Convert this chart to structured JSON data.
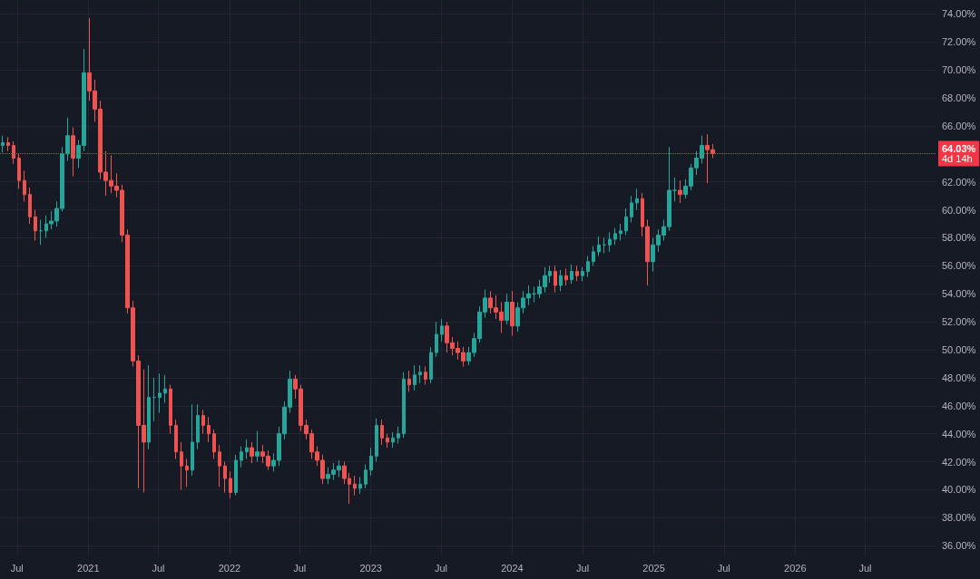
{
  "chart_data": {
    "type": "candlestick",
    "x": [
      "2020-05-25",
      "2020-06-08",
      "2020-06-22",
      "2020-07-06",
      "2020-07-20",
      "2020-08-03",
      "2020-08-17",
      "2020-08-31",
      "2020-09-14",
      "2020-09-28",
      "2020-10-12",
      "2020-10-26",
      "2020-11-09",
      "2020-11-23",
      "2020-12-07",
      "2020-12-21",
      "2021-01-04",
      "2021-01-18",
      "2021-02-01",
      "2021-02-15",
      "2021-03-01",
      "2021-03-15",
      "2021-03-29",
      "2021-04-12",
      "2021-04-26",
      "2021-05-10",
      "2021-05-24",
      "2021-06-07",
      "2021-06-21",
      "2021-07-05",
      "2021-07-19",
      "2021-08-02",
      "2021-08-16",
      "2021-08-30",
      "2021-09-13",
      "2021-09-27",
      "2021-10-11",
      "2021-10-25",
      "2021-11-08",
      "2021-11-22",
      "2021-12-06",
      "2021-12-20",
      "2022-01-03",
      "2022-01-17",
      "2022-01-31",
      "2022-02-14",
      "2022-02-28",
      "2022-03-14",
      "2022-03-28",
      "2022-04-11",
      "2022-04-25",
      "2022-05-09",
      "2022-05-23",
      "2022-06-06",
      "2022-06-20",
      "2022-07-04",
      "2022-07-18",
      "2022-08-01",
      "2022-08-15",
      "2022-08-29",
      "2022-09-12",
      "2022-09-26",
      "2022-10-10",
      "2022-10-24",
      "2022-11-07",
      "2022-11-21",
      "2022-12-05",
      "2022-12-19",
      "2023-01-02",
      "2023-01-16",
      "2023-01-30",
      "2023-02-13",
      "2023-02-27",
      "2023-03-13",
      "2023-03-27",
      "2023-04-10",
      "2023-04-24",
      "2023-05-08",
      "2023-05-22",
      "2023-06-05",
      "2023-06-19",
      "2023-07-03",
      "2023-07-17",
      "2023-07-31",
      "2023-08-14",
      "2023-08-28",
      "2023-09-11",
      "2023-09-25",
      "2023-10-09",
      "2023-10-23",
      "2023-11-06",
      "2023-11-20",
      "2023-12-04",
      "2023-12-18",
      "2024-01-01",
      "2024-01-15",
      "2024-01-29",
      "2024-02-12",
      "2024-02-26",
      "2024-03-11",
      "2024-03-25",
      "2024-04-08",
      "2024-04-22",
      "2024-05-06",
      "2024-05-20",
      "2024-06-03",
      "2024-06-17",
      "2024-07-01",
      "2024-07-15",
      "2024-07-29",
      "2024-08-12",
      "2024-08-26",
      "2024-09-09",
      "2024-09-23",
      "2024-10-07",
      "2024-10-21",
      "2024-11-04",
      "2024-11-18",
      "2024-12-02",
      "2024-12-16",
      "2024-12-30",
      "2025-01-13",
      "2025-01-27",
      "2025-02-10",
      "2025-02-24",
      "2025-03-10",
      "2025-03-24",
      "2025-04-07",
      "2025-04-21",
      "2025-05-05",
      "2025-05-19",
      "2025-06-02"
    ],
    "ohlc": [
      [
        64.6,
        65.3,
        64.1,
        64.8
      ],
      [
        64.8,
        65.2,
        64.2,
        64.6
      ],
      [
        64.6,
        64.9,
        63.3,
        63.7
      ],
      [
        63.7,
        64.0,
        61.5,
        62.1
      ],
      [
        62.1,
        62.8,
        60.6,
        61.1
      ],
      [
        61.1,
        61.6,
        59.0,
        59.5
      ],
      [
        59.5,
        60.0,
        57.8,
        58.5
      ],
      [
        58.5,
        59.3,
        57.5,
        58.5
      ],
      [
        58.5,
        59.6,
        58.0,
        59.0
      ],
      [
        59.0,
        59.9,
        58.6,
        59.2
      ],
      [
        59.2,
        60.6,
        58.8,
        60.1
      ],
      [
        60.1,
        64.5,
        59.9,
        64.0
      ],
      [
        64.0,
        66.6,
        63.5,
        65.3
      ],
      [
        65.3,
        65.9,
        62.4,
        63.7
      ],
      [
        63.7,
        65.0,
        63.0,
        64.6
      ],
      [
        64.6,
        71.5,
        64.2,
        69.8
      ],
      [
        69.8,
        73.7,
        67.8,
        68.5
      ],
      [
        68.5,
        69.3,
        66.3,
        67.2
      ],
      [
        67.2,
        67.8,
        62.2,
        62.7
      ],
      [
        62.7,
        64.2,
        61.0,
        62.1
      ],
      [
        62.1,
        63.9,
        61.2,
        61.7
      ],
      [
        61.7,
        62.6,
        60.9,
        61.4
      ],
      [
        61.4,
        61.8,
        57.7,
        58.2
      ],
      [
        58.2,
        58.6,
        52.6,
        53.0
      ],
      [
        53.0,
        53.5,
        48.8,
        49.2
      ],
      [
        49.2,
        49.6,
        40.1,
        44.6
      ],
      [
        44.6,
        48.6,
        39.8,
        43.4
      ],
      [
        43.4,
        48.9,
        42.9,
        46.6
      ],
      [
        46.6,
        48.0,
        44.9,
        46.6
      ],
      [
        46.6,
        48.3,
        45.5,
        46.9
      ],
      [
        46.9,
        48.2,
        46.2,
        47.2
      ],
      [
        47.2,
        47.5,
        44.0,
        44.6
      ],
      [
        44.6,
        45.0,
        42.2,
        42.7
      ],
      [
        42.7,
        43.4,
        40.0,
        41.7
      ],
      [
        41.7,
        42.2,
        40.2,
        41.4
      ],
      [
        41.4,
        46.1,
        41.0,
        43.4
      ],
      [
        43.4,
        46.1,
        42.9,
        45.3
      ],
      [
        45.3,
        45.7,
        44.0,
        44.6
      ],
      [
        44.6,
        45.2,
        43.4,
        44.0
      ],
      [
        44.0,
        44.3,
        42.2,
        42.7
      ],
      [
        42.7,
        43.2,
        40.2,
        41.7
      ],
      [
        41.7,
        42.0,
        39.8,
        40.8
      ],
      [
        40.8,
        41.3,
        39.4,
        39.8
      ],
      [
        39.8,
        42.5,
        39.6,
        42.1
      ],
      [
        42.1,
        43.1,
        41.6,
        42.7
      ],
      [
        42.7,
        43.6,
        42.2,
        43.0
      ],
      [
        43.0,
        43.4,
        41.9,
        42.4
      ],
      [
        42.4,
        44.2,
        42.0,
        42.7
      ],
      [
        42.7,
        43.2,
        41.9,
        42.4
      ],
      [
        42.4,
        42.8,
        41.4,
        41.7
      ],
      [
        41.7,
        42.6,
        41.3,
        42.1
      ],
      [
        42.1,
        44.5,
        41.7,
        44.0
      ],
      [
        44.0,
        46.3,
        43.6,
        45.9
      ],
      [
        45.9,
        48.5,
        45.5,
        47.9
      ],
      [
        47.9,
        48.2,
        46.5,
        47.2
      ],
      [
        47.2,
        47.5,
        44.2,
        44.6
      ],
      [
        44.6,
        45.0,
        43.6,
        44.0
      ],
      [
        44.0,
        44.3,
        42.2,
        42.7
      ],
      [
        42.7,
        43.1,
        41.7,
        42.1
      ],
      [
        42.1,
        42.5,
        40.4,
        40.8
      ],
      [
        40.8,
        41.6,
        40.4,
        41.1
      ],
      [
        41.1,
        41.9,
        40.7,
        41.4
      ],
      [
        41.4,
        42.1,
        40.9,
        41.7
      ],
      [
        41.7,
        42.0,
        40.4,
        40.8
      ],
      [
        40.8,
        41.2,
        39.0,
        40.4
      ],
      [
        40.4,
        41.0,
        39.6,
        40.1
      ],
      [
        40.1,
        40.9,
        39.7,
        40.4
      ],
      [
        40.4,
        41.8,
        40.1,
        41.4
      ],
      [
        41.4,
        43.0,
        41.0,
        42.4
      ],
      [
        42.4,
        45.1,
        42.0,
        44.6
      ],
      [
        44.6,
        45.0,
        43.2,
        43.7
      ],
      [
        43.7,
        44.0,
        43.0,
        43.4
      ],
      [
        43.4,
        44.1,
        43.0,
        43.7
      ],
      [
        43.7,
        44.5,
        43.3,
        44.0
      ],
      [
        44.0,
        48.4,
        43.7,
        47.9
      ],
      [
        47.9,
        48.5,
        47.0,
        47.5
      ],
      [
        47.5,
        48.9,
        47.1,
        48.2
      ],
      [
        48.2,
        48.9,
        47.6,
        48.4
      ],
      [
        48.4,
        48.8,
        47.5,
        47.9
      ],
      [
        47.9,
        50.2,
        47.6,
        49.8
      ],
      [
        49.8,
        52.0,
        49.5,
        51.1
      ],
      [
        51.1,
        52.2,
        50.6,
        51.7
      ],
      [
        51.7,
        52.0,
        49.8,
        50.5
      ],
      [
        50.5,
        50.9,
        49.6,
        50.1
      ],
      [
        50.1,
        50.6,
        49.3,
        49.8
      ],
      [
        49.8,
        50.2,
        48.8,
        49.2
      ],
      [
        49.2,
        50.2,
        48.9,
        49.8
      ],
      [
        49.8,
        51.2,
        49.5,
        50.8
      ],
      [
        50.8,
        53.1,
        50.5,
        52.7
      ],
      [
        52.7,
        54.3,
        52.3,
        53.7
      ],
      [
        53.7,
        54.2,
        52.6,
        53.0
      ],
      [
        53.0,
        53.9,
        52.2,
        52.7
      ],
      [
        52.7,
        53.4,
        51.2,
        52.1
      ],
      [
        52.1,
        54.0,
        51.8,
        53.4
      ],
      [
        53.4,
        54.2,
        51.0,
        51.7
      ],
      [
        51.7,
        53.4,
        51.3,
        53.0
      ],
      [
        53.0,
        54.2,
        52.6,
        53.7
      ],
      [
        53.7,
        54.6,
        53.2,
        54.0
      ],
      [
        54.0,
        54.5,
        53.4,
        54.0
      ],
      [
        54.0,
        55.0,
        53.7,
        54.5
      ],
      [
        54.5,
        55.9,
        54.1,
        55.3
      ],
      [
        55.3,
        56.0,
        54.8,
        55.6
      ],
      [
        55.6,
        56.0,
        54.1,
        54.6
      ],
      [
        54.6,
        55.7,
        54.2,
        55.3
      ],
      [
        55.3,
        55.8,
        54.6,
        55.0
      ],
      [
        55.0,
        56.1,
        54.7,
        55.6
      ],
      [
        55.6,
        56.0,
        54.9,
        55.3
      ],
      [
        55.3,
        55.9,
        54.9,
        55.6
      ],
      [
        55.6,
        56.7,
        55.2,
        56.3
      ],
      [
        56.3,
        57.4,
        56.0,
        57.0
      ],
      [
        57.0,
        58.1,
        56.7,
        57.5
      ],
      [
        57.5,
        58.0,
        56.9,
        57.5
      ],
      [
        57.5,
        58.4,
        57.0,
        57.9
      ],
      [
        57.9,
        58.7,
        57.5,
        58.3
      ],
      [
        58.3,
        59.0,
        57.8,
        58.5
      ],
      [
        58.5,
        60.1,
        58.2,
        59.5
      ],
      [
        59.5,
        61.0,
        59.1,
        60.5
      ],
      [
        60.5,
        61.5,
        60.0,
        60.8
      ],
      [
        60.8,
        61.2,
        58.1,
        58.8
      ],
      [
        58.8,
        59.3,
        54.6,
        56.3
      ],
      [
        56.3,
        58.0,
        55.6,
        57.5
      ],
      [
        57.5,
        58.6,
        57.0,
        58.2
      ],
      [
        58.2,
        59.3,
        57.8,
        58.8
      ],
      [
        58.8,
        64.5,
        58.5,
        61.4
      ],
      [
        61.4,
        62.3,
        60.6,
        61.4
      ],
      [
        61.4,
        62.1,
        60.5,
        61.1
      ],
      [
        61.1,
        62.2,
        60.8,
        61.7
      ],
      [
        61.7,
        63.3,
        61.4,
        63.0
      ],
      [
        63.0,
        64.2,
        62.5,
        63.7
      ],
      [
        63.7,
        65.3,
        63.3,
        64.6
      ],
      [
        64.6,
        65.4,
        61.9,
        64.3
      ],
      [
        64.3,
        64.7,
        63.7,
        64.03
      ]
    ],
    "colors": [
      "#26a69a",
      "#ef5350",
      "#ef5350",
      "#ef5350",
      "#ef5350",
      "#ef5350",
      "#ef5350",
      "#26a69a",
      "#26a69a",
      "#26a69a",
      "#26a69a",
      "#26a69a",
      "#26a69a",
      "#ef5350",
      "#26a69a",
      "#26a69a",
      "#ef5350",
      "#ef5350",
      "#ef5350",
      "#ef5350",
      "#ef5350",
      "#ef5350",
      "#ef5350",
      "#ef5350",
      "#ef5350",
      "#ef5350",
      "#ef5350",
      "#26a69a",
      "#26a69a",
      "#26a69a",
      "#26a69a",
      "#ef5350",
      "#ef5350",
      "#ef5350",
      "#ef5350",
      "#26a69a",
      "#26a69a",
      "#ef5350",
      "#ef5350",
      "#ef5350",
      "#ef5350",
      "#ef5350",
      "#ef5350",
      "#26a69a",
      "#26a69a",
      "#26a69a",
      "#ef5350",
      "#26a69a",
      "#ef5350",
      "#ef5350",
      "#26a69a",
      "#26a69a",
      "#26a69a",
      "#26a69a",
      "#ef5350",
      "#ef5350",
      "#ef5350",
      "#ef5350",
      "#ef5350",
      "#ef5350",
      "#26a69a",
      "#26a69a",
      "#26a69a",
      "#ef5350",
      "#ef5350",
      "#ef5350",
      "#26a69a",
      "#26a69a",
      "#26a69a",
      "#26a69a",
      "#ef5350",
      "#ef5350",
      "#26a69a",
      "#26a69a",
      "#26a69a",
      "#ef5350",
      "#26a69a",
      "#26a69a",
      "#ef5350",
      "#26a69a",
      "#26a69a",
      "#26a69a",
      "#ef5350",
      "#ef5350",
      "#ef5350",
      "#ef5350",
      "#26a69a",
      "#26a69a",
      "#26a69a",
      "#26a69a",
      "#ef5350",
      "#ef5350",
      "#ef5350",
      "#26a69a",
      "#ef5350",
      "#26a69a",
      "#26a69a",
      "#26a69a",
      "#26a69a",
      "#26a69a",
      "#26a69a",
      "#26a69a",
      "#ef5350",
      "#26a69a",
      "#ef5350",
      "#26a69a",
      "#ef5350",
      "#26a69a",
      "#26a69a",
      "#26a69a",
      "#26a69a",
      "#26a69a",
      "#26a69a",
      "#26a69a",
      "#26a69a",
      "#26a69a",
      "#26a69a",
      "#26a69a",
      "#ef5350",
      "#ef5350",
      "#26a69a",
      "#26a69a",
      "#26a69a",
      "#26a69a",
      "#26a69a",
      "#ef5350",
      "#26a69a",
      "#26a69a",
      "#26a69a",
      "#26a69a",
      "#ef5350",
      "#ef5350"
    ],
    "xlim": [
      "2020-05-18",
      "2027-01-01"
    ],
    "xticks": [
      {
        "value": "2020-07-01",
        "label": "Jul"
      },
      {
        "value": "2021-01-01",
        "label": "2021"
      },
      {
        "value": "2021-07-01",
        "label": "Jul"
      },
      {
        "value": "2022-01-01",
        "label": "2022"
      },
      {
        "value": "2022-07-01",
        "label": "Jul"
      },
      {
        "value": "2023-01-01",
        "label": "2023"
      },
      {
        "value": "2023-07-01",
        "label": "Jul"
      },
      {
        "value": "2024-01-01",
        "label": "2024"
      },
      {
        "value": "2024-07-01",
        "label": "Jul"
      },
      {
        "value": "2025-01-01",
        "label": "2025"
      },
      {
        "value": "2025-07-01",
        "label": "Jul"
      },
      {
        "value": "2026-01-01",
        "label": "2026"
      },
      {
        "value": "2026-07-01",
        "label": "Jul"
      }
    ],
    "ylim": [
      35.3,
      75
    ],
    "yticks": [
      {
        "value": 36,
        "label": "36.00%"
      },
      {
        "value": 38,
        "label": "38.00%"
      },
      {
        "value": 40,
        "label": "40.00%"
      },
      {
        "value": 42,
        "label": "42.00%"
      },
      {
        "value": 44,
        "label": "44.00%"
      },
      {
        "value": 46,
        "label": "46.00%"
      },
      {
        "value": 48,
        "label": "48.00%"
      },
      {
        "value": 50,
        "label": "50.00%"
      },
      {
        "value": 52,
        "label": "52.00%"
      },
      {
        "value": 54,
        "label": "54.00%"
      },
      {
        "value": 56,
        "label": "56.00%"
      },
      {
        "value": 58,
        "label": "58.00%"
      },
      {
        "value": 60,
        "label": "60.00%"
      },
      {
        "value": 62,
        "label": "62.00%"
      },
      {
        "value": 66,
        "label": "66.00%"
      },
      {
        "value": 68,
        "label": "68.00%"
      },
      {
        "value": 70,
        "label": "70.00%"
      },
      {
        "value": 72,
        "label": "72.00%"
      },
      {
        "value": 74,
        "label": "74.00%"
      }
    ],
    "ref_lines": [
      {
        "axis": "y",
        "value": 64.03,
        "label": "64.03%",
        "color": "#f23645",
        "line_style": "dotted"
      }
    ],
    "annotations": [
      "4d 14h"
    ],
    "grid": true
  }
}
